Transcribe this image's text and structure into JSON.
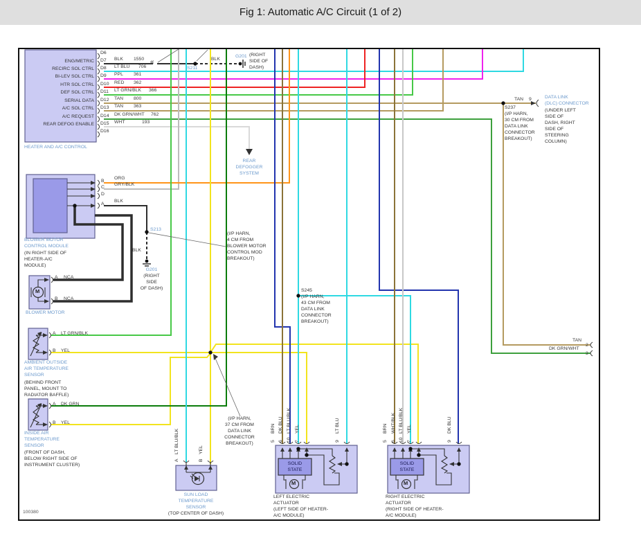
{
  "title": "Fig 1: Automatic A/C Circuit (1 of 2)",
  "footer_code": "100380",
  "colors": {
    "BLK": "#2e2e2e",
    "LT BLU": "#2ed9e2",
    "LT BLU/BLK": "#2ed9e2",
    "PPL": "#ee22ee",
    "RED": "#ee2222",
    "LT GRN/BLK": "#46c846",
    "TAN": "#b49a5f",
    "DK GRN/WHT": "#3da03d",
    "WHT": "#d9d9d9",
    "GRY/BLK": "#bcbcbc",
    "ORG": "#ff9418",
    "DK BLU": "#2133ae",
    "BRN": "#8a7338",
    "DK GRN": "#0b7c0b",
    "YEL": "#f2e41e",
    "WHT/BLK": "#c8c8c8",
    "component_fill": "#cbcbf3",
    "component_inner": "#9a9ae8",
    "component_border": "#606090",
    "blue_label": "#6b99cc",
    "black_label": "#333333"
  },
  "heater_control": {
    "caption": "HEATER AND A/C CONTROL",
    "pins": [
      {
        "pin": "D6",
        "fn": "",
        "wire": "",
        "ckt": ""
      },
      {
        "pin": "D7",
        "fn": "ENG/METRIC",
        "wire": "BLK",
        "ckt": "1550"
      },
      {
        "pin": "D8",
        "fn": "RECIRC SOL CTRL",
        "wire": "LT BLU",
        "ckt": "706"
      },
      {
        "pin": "D9",
        "fn": "BI-LEV SOL CTRL",
        "wire": "PPL",
        "ckt": "361"
      },
      {
        "pin": "D10",
        "fn": "HTR SOL CTRL",
        "wire": "RED",
        "ckt": "362"
      },
      {
        "pin": "D11",
        "fn": "DEF SOL CTRL",
        "wire": "LT GRN/BLK",
        "ckt": "366"
      },
      {
        "pin": "D12",
        "fn": "SERIAL DATA",
        "wire": "TAN",
        "ckt": "800"
      },
      {
        "pin": "D13",
        "fn": "A/C SOL CTRL",
        "wire": "TAN",
        "ckt": "363"
      },
      {
        "pin": "D14",
        "fn": "A/C REQUEST",
        "wire": "DK GRN/WHT",
        "ckt": "762"
      },
      {
        "pin": "D15",
        "fn": "REAR DEFOG ENABLE",
        "wire": "WHT",
        "ckt": "193"
      },
      {
        "pin": "D16",
        "fn": "",
        "wire": "",
        "ckt": ""
      }
    ]
  },
  "splices": {
    "s211": "S211",
    "s213": "S213"
  },
  "wire_tags": {
    "blk_top": "BLK",
    "blk_blower": "BLK"
  },
  "grounds": {
    "g201_top": {
      "id": "G201",
      "loc": [
        "(RIGHT",
        "SIDE OF",
        "DASH)"
      ]
    },
    "g201_blower": {
      "id": "G201",
      "loc": [
        "(RIGHT",
        "SIDE",
        "OF DASH)"
      ]
    }
  },
  "notes": {
    "s213_note": [
      "(I/P HARN,",
      "4 CM FROM",
      "BLOWER MOTOR",
      "CONTROL MOD",
      "BREAKOUT)"
    ],
    "s237_note": [
      "S237",
      "(I/P HARN,",
      "30 CM FROM",
      "DATA LINK",
      "CONNECTOR",
      "BREAKOUT)"
    ],
    "s245_note": [
      "S245",
      "(I/P HARN,",
      "43 CM FROM",
      "DATA LINK",
      "CONNECTOR",
      "BREAKOUT)"
    ],
    "s258_note": [
      "(I/P HARN,",
      "37 CM FROM",
      "DATA LINK",
      "CONNECTOR",
      "BREAKOUT)"
    ]
  },
  "dlc": {
    "name": [
      "DATA LINK",
      "(DLC) CONNECTOR"
    ],
    "loc": [
      "(UNDER LEFT",
      "SIDE OF",
      "DASH, RIGHT",
      "SIDE OF",
      "STEERING",
      "COLUMN)"
    ],
    "wire": "TAN",
    "pin": "9"
  },
  "rear_defogger": [
    "REAR",
    "DEFOGGER",
    "SYSTEM"
  ],
  "exits": {
    "tan": {
      "wire": "TAN",
      "pin": "2"
    },
    "grn": {
      "wire": "DK GRN/WHT",
      "pin": "3"
    }
  },
  "blower_module": {
    "name": [
      "BLOWER MOTOR",
      "CONTROL MODULE"
    ],
    "loc": [
      "(IN RIGHT SIDE OF",
      "HEATER-A/C",
      "MODULE)"
    ],
    "pins": [
      {
        "pin": "B",
        "wire": "ORG"
      },
      {
        "pin": "C",
        "wire": "GRY/BLK"
      },
      {
        "pin": "D",
        "wire": ""
      },
      {
        "pin": "A",
        "wire": "BLK"
      }
    ]
  },
  "blower_motor": {
    "name": "BLOWER MOTOR",
    "motor": "M",
    "pins": [
      {
        "pin": "A",
        "wire": "NCA"
      },
      {
        "pin": "B",
        "wire": "NCA"
      }
    ]
  },
  "ambient_sensor": {
    "name": [
      "AMBIENT OUTSIDE",
      "AIR TEMPERATURE",
      "SENSOR"
    ],
    "loc": [
      "(BEHIND FRONT",
      "PANEL, MOUNT TO",
      "RADIATOR BAFFLE)"
    ],
    "pins": [
      {
        "pin": "A",
        "wire": "LT GRN/BLK"
      },
      {
        "pin": "B",
        "wire": "YEL"
      }
    ]
  },
  "inside_sensor": {
    "name": [
      "INSIDE AIR",
      "TEMPERATURE",
      "SENSOR"
    ],
    "loc": [
      "(FRONT OF DASH,",
      "BELOW RIGHT SIDE OF",
      "INSTRUMENT CLUSTER)"
    ],
    "pins": [
      {
        "pin": "A",
        "wire": "DK GRN"
      },
      {
        "pin": "B",
        "wire": "YEL"
      }
    ]
  },
  "sun_load_sensor": {
    "name": [
      "SUN LOAD",
      "TEMPERATURE",
      "SENSOR"
    ],
    "loc": "(TOP CENTER OF DASH)",
    "pins": [
      {
        "pin": "A",
        "wire": "LT BLU/BLK"
      },
      {
        "pin": "B",
        "wire": "YEL"
      }
    ]
  },
  "left_actuator": {
    "name": [
      "LEFT ELECTRIC",
      "ACTUATOR",
      "(LEFT SIDE OF HEATER-",
      "A/C MODULE)"
    ],
    "solid_state": [
      "SOLID",
      "STATE"
    ],
    "motor": "M",
    "pins": [
      {
        "pin": "5",
        "wire": "BRN"
      },
      {
        "pin": "6",
        "wire": "DK BLU"
      },
      {
        "pin": "10",
        "wire": "LT BLU/BLK"
      },
      {
        "pin": "7",
        "wire": "YEL"
      },
      {
        "pin": "9",
        "wire": "LT BLU"
      }
    ]
  },
  "right_actuator": {
    "name": [
      "RIGHT ELECTRIC",
      "ACTUATOR",
      "(RIGHT SIDE OF HEATER-",
      "A/C MODULE)"
    ],
    "solid_state": [
      "SOLID",
      "STATE"
    ],
    "motor": "M",
    "pins": [
      {
        "pin": "5",
        "wire": "BRN"
      },
      {
        "pin": "6",
        "wire": "WHT/BLK"
      },
      {
        "pin": "10",
        "wire": "LT BLU/BLK"
      },
      {
        "pin": "7",
        "wire": "YEL"
      },
      {
        "pin": "9",
        "wire": "DK BLU"
      }
    ]
  }
}
